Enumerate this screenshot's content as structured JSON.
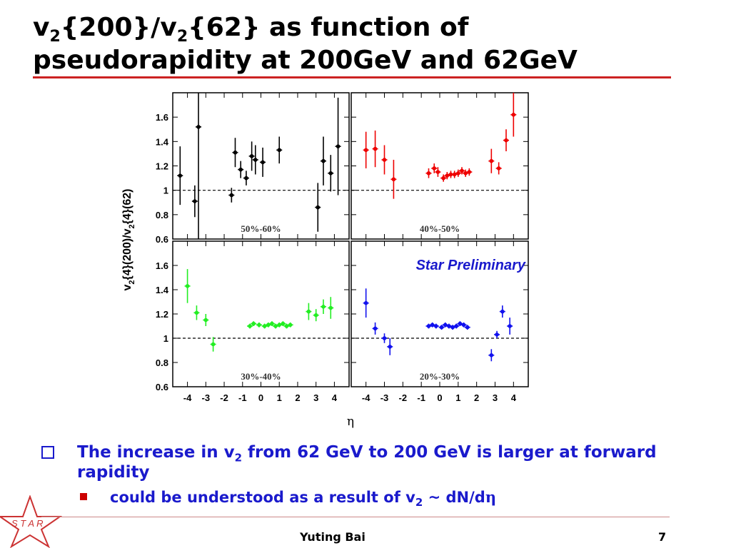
{
  "slide": {
    "title_v": "v",
    "title_sub": "2",
    "title_part1": "{200}/v",
    "title_part2": "{62} as function of pseudorapidity at 200GeV and 62GeV",
    "bullet1_pre": "The increase in v",
    "bullet1_sub": "2",
    "bullet1_post": " from 62 GeV to 200 GeV is larger at forward rapidity",
    "bullet2_pre": "could be understood as a result of v",
    "bullet2_sub": "2",
    "bullet2_post": " ~ dN/d",
    "bullet2_eta": "η",
    "author": "Yuting Bai",
    "page_number": "7",
    "logo_text": "S T A R"
  },
  "chart_data": [
    {
      "type": "scatter",
      "panel": "top-left",
      "panel_label": "50%-60%",
      "color": "#000000",
      "x": [
        -4.4,
        -3.6,
        -3.4,
        -1.6,
        -1.4,
        -1.1,
        -0.8,
        -0.5,
        -0.3,
        0.1,
        1.0,
        3.1,
        3.4,
        3.8,
        4.2
      ],
      "y": [
        1.12,
        0.91,
        1.52,
        0.96,
        1.31,
        1.17,
        1.1,
        1.28,
        1.25,
        1.23,
        1.33,
        0.86,
        1.24,
        1.14,
        1.36
      ],
      "y_err": [
        0.24,
        0.13,
        0.98,
        0.06,
        0.12,
        0.07,
        0.06,
        0.12,
        0.12,
        0.12,
        0.11,
        0.2,
        0.2,
        0.15,
        0.4
      ],
      "reference_line": 1,
      "ylim": [
        0.6,
        1.8
      ],
      "xlim": [
        -4.8,
        4.8
      ]
    },
    {
      "type": "scatter",
      "panel": "top-right",
      "panel_label": "40%-50%",
      "color": "#ee0000",
      "x": [
        -4.0,
        -3.5,
        -3.0,
        -2.5,
        -0.6,
        -0.3,
        -0.1,
        0.2,
        0.4,
        0.6,
        0.8,
        1.0,
        1.2,
        1.4,
        1.6,
        2.8,
        3.2,
        3.6,
        4.0
      ],
      "y": [
        1.33,
        1.34,
        1.25,
        1.09,
        1.14,
        1.18,
        1.15,
        1.1,
        1.12,
        1.13,
        1.13,
        1.14,
        1.16,
        1.14,
        1.15,
        1.24,
        1.18,
        1.41,
        1.62
      ],
      "y_err": [
        0.15,
        0.15,
        0.12,
        0.16,
        0.04,
        0.04,
        0.04,
        0.03,
        0.03,
        0.03,
        0.03,
        0.03,
        0.03,
        0.03,
        0.03,
        0.1,
        0.05,
        0.09,
        0.18
      ],
      "reference_line": 1,
      "ylim": [
        0.6,
        1.8
      ],
      "xlim": [
        -4.8,
        4.8
      ]
    },
    {
      "type": "scatter",
      "panel": "bottom-left",
      "panel_label": "30%-40%",
      "color": "#22ee22",
      "x": [
        -4.0,
        -3.5,
        -3.0,
        -2.6,
        -0.6,
        -0.4,
        -0.1,
        0.2,
        0.4,
        0.6,
        0.8,
        1.0,
        1.2,
        1.4,
        1.6,
        2.6,
        3.0,
        3.4,
        3.8
      ],
      "y": [
        1.43,
        1.21,
        1.15,
        0.95,
        1.1,
        1.12,
        1.11,
        1.1,
        1.11,
        1.12,
        1.1,
        1.11,
        1.12,
        1.1,
        1.11,
        1.22,
        1.19,
        1.26,
        1.25
      ],
      "y_err": [
        0.14,
        0.06,
        0.05,
        0.06,
        0.02,
        0.02,
        0.02,
        0.02,
        0.02,
        0.02,
        0.02,
        0.02,
        0.02,
        0.02,
        0.02,
        0.07,
        0.05,
        0.06,
        0.09
      ],
      "reference_line": 1,
      "ylim": [
        0.6,
        1.8
      ],
      "xlim": [
        -4.8,
        4.8
      ]
    },
    {
      "type": "scatter",
      "panel": "bottom-right",
      "panel_label": "20%-30%",
      "color": "#1111ee",
      "x": [
        -4.0,
        -3.5,
        -3.0,
        -2.7,
        -0.6,
        -0.4,
        -0.2,
        0.1,
        0.3,
        0.5,
        0.7,
        0.9,
        1.1,
        1.3,
        1.5,
        2.8,
        3.1,
        3.4,
        3.8
      ],
      "y": [
        1.29,
        1.08,
        1.0,
        0.93,
        1.1,
        1.11,
        1.1,
        1.09,
        1.11,
        1.1,
        1.09,
        1.1,
        1.12,
        1.11,
        1.09,
        0.86,
        1.03,
        1.22,
        1.1
      ],
      "y_err": [
        0.12,
        0.05,
        0.04,
        0.07,
        0.02,
        0.02,
        0.02,
        0.02,
        0.02,
        0.02,
        0.02,
        0.02,
        0.02,
        0.02,
        0.02,
        0.05,
        0.03,
        0.05,
        0.07
      ],
      "reference_line": 1,
      "ylim": [
        0.6,
        1.8
      ],
      "xlim": [
        -4.8,
        4.8
      ]
    }
  ],
  "axes": {
    "ylabel_parts": [
      "v",
      "2",
      "{4}(200)/v",
      "2",
      "{4}(62)"
    ],
    "xlabel": "η",
    "yticks": [
      "0.6",
      "0.8",
      "1",
      "1.2",
      "1.4",
      "1.6"
    ],
    "ytick_values": [
      0.6,
      0.8,
      1.0,
      1.2,
      1.4,
      1.6
    ],
    "xticks": [
      "-4",
      "-3",
      "-2",
      "-1",
      "0",
      "1",
      "2",
      "3",
      "4"
    ],
    "xtick_values": [
      -4,
      -3,
      -2,
      -1,
      0,
      1,
      2,
      3,
      4
    ],
    "annotation": "Star Preliminary",
    "annotation_color": "#1a1acc",
    "grid": false
  }
}
